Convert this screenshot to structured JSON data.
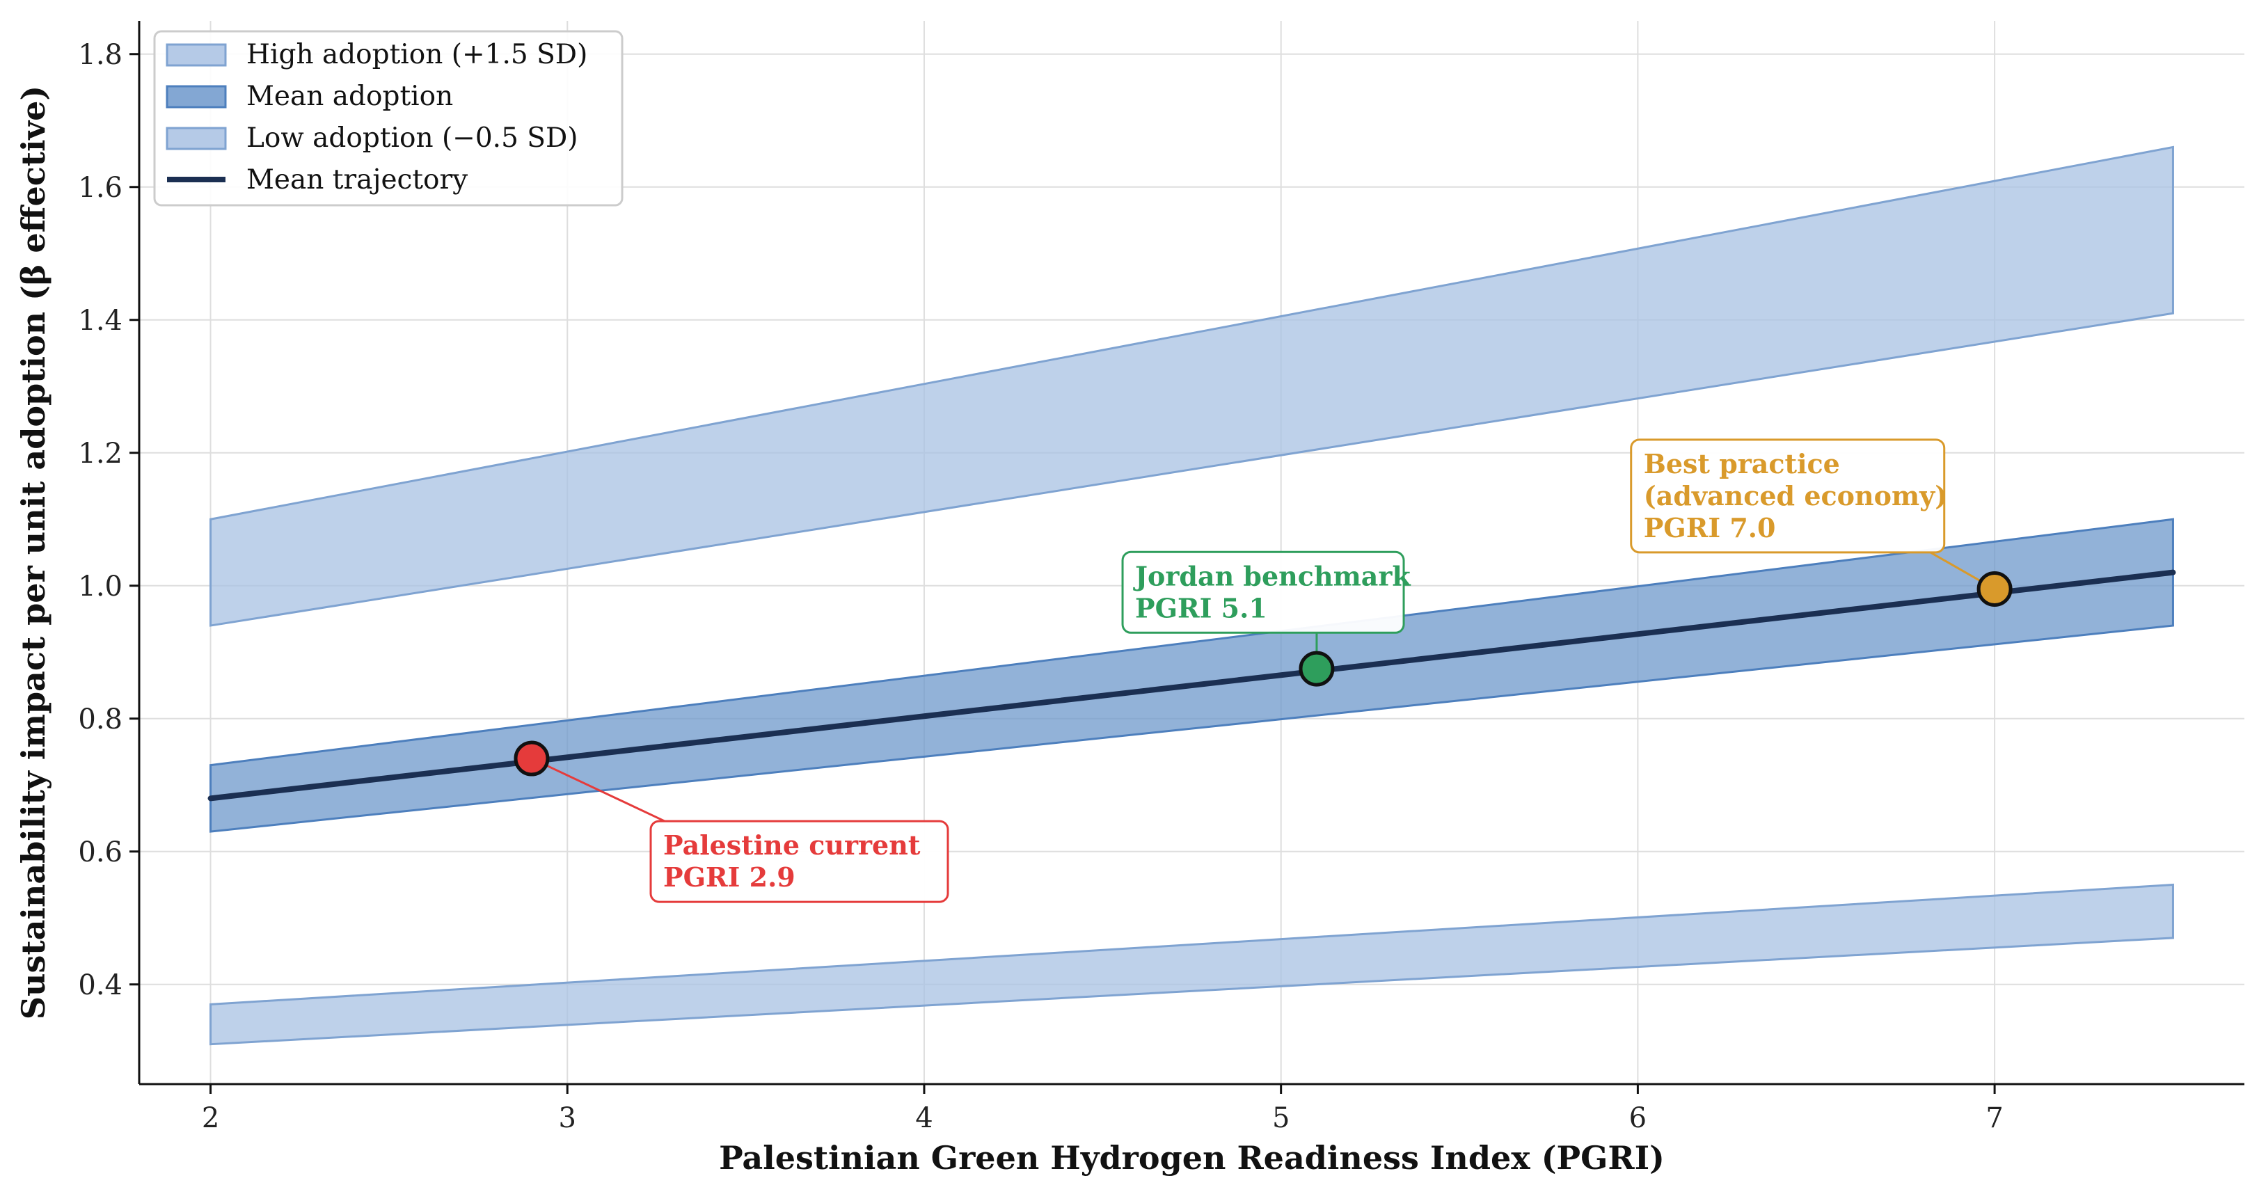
{
  "chart_data": {
    "type": "area",
    "xlabel": "Palestinian Green Hydrogen Readiness Index (PGRI)",
    "ylabel": "Sustainability impact per unit adoption (β effective)",
    "xlim": [
      1.8,
      7.7
    ],
    "ylim": [
      0.25,
      1.85
    ],
    "x_ticks": [
      2,
      3,
      4,
      5,
      6,
      7
    ],
    "y_ticks": [
      0.4,
      0.6,
      0.8,
      1.0,
      1.2,
      1.4,
      1.6,
      1.8
    ],
    "x_tick_labels": [
      "2",
      "3",
      "4",
      "5",
      "6",
      "7"
    ],
    "y_tick_labels": [
      "0.4",
      "0.6",
      "0.8",
      "1.0",
      "1.2",
      "1.4",
      "1.6",
      "1.8"
    ],
    "grid": true,
    "legend_position": "top-left",
    "x": [
      2.0,
      7.5
    ],
    "bands": [
      {
        "name": "High adoption (+1.5 SD)",
        "lower": [
          0.94,
          1.41
        ],
        "upper": [
          1.1,
          1.66
        ],
        "fill": "#a8c1e3",
        "edge": "#7fa3d1"
      },
      {
        "name": "Mean adoption",
        "lower": [
          0.63,
          0.94
        ],
        "upper": [
          0.73,
          1.1
        ],
        "fill": "#6d98cb",
        "edge": "#4d7fbd"
      },
      {
        "name": "Low adoption (−0.5 SD)",
        "lower": [
          0.31,
          0.47
        ],
        "upper": [
          0.37,
          0.55
        ],
        "fill": "#a8c1e3",
        "edge": "#7fa3d1"
      }
    ],
    "line": {
      "name": "Mean trajectory",
      "x": [
        2.0,
        7.5
      ],
      "y": [
        0.68,
        1.02
      ],
      "color": "#1b2f52"
    },
    "points": [
      {
        "x": 2.9,
        "y": 0.74,
        "color": "#e53b3b",
        "label_lines": [
          "Palestine current",
          "PGRI 2.9"
        ],
        "label_x": 3.65,
        "label_y": 0.585
      },
      {
        "x": 5.1,
        "y": 0.875,
        "color": "#2e9e5c",
        "label_lines": [
          "Jordan benchmark",
          "PGRI 5.1"
        ],
        "label_x": 4.95,
        "label_y": 0.99
      },
      {
        "x": 7.0,
        "y": 0.995,
        "color": "#d99a2b",
        "label_lines": [
          "Best practice",
          "(advanced economy)",
          "PGRI 7.0"
        ],
        "label_x": 6.42,
        "label_y": 1.135
      }
    ]
  }
}
